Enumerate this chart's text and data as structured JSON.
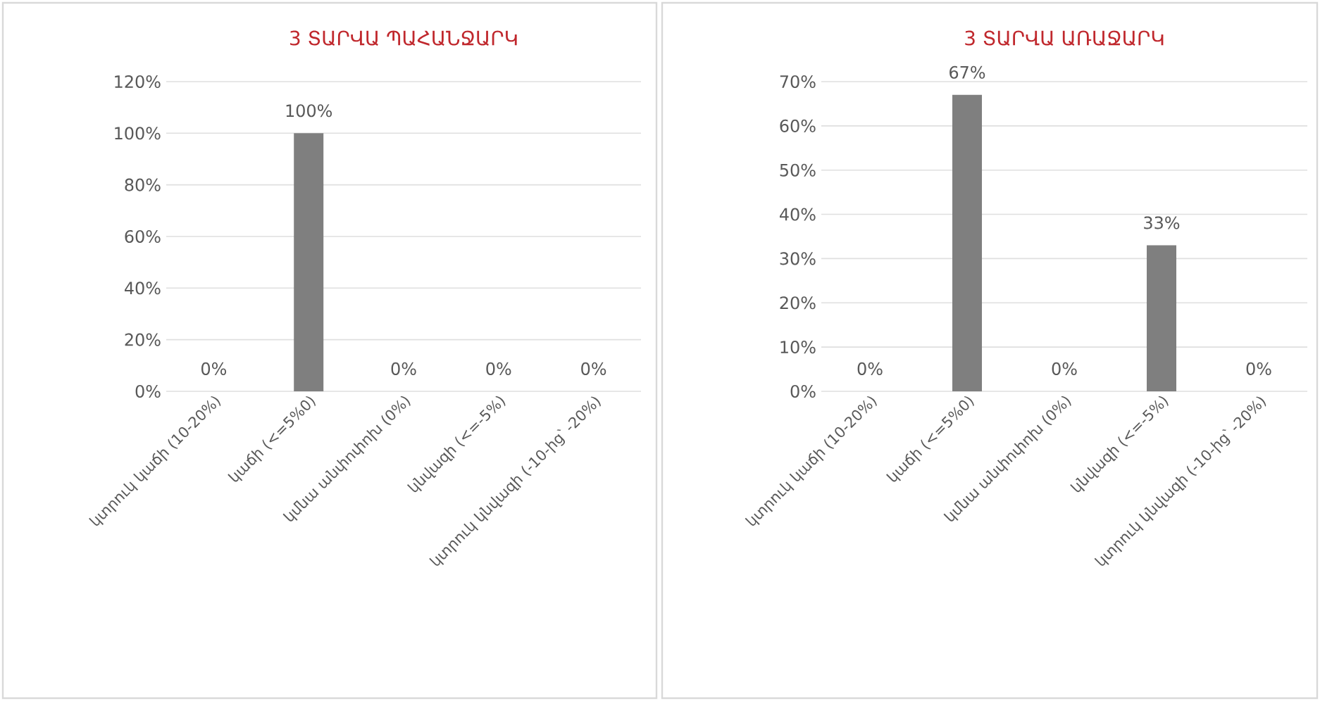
{
  "chart_data": [
    {
      "type": "bar",
      "title": "3 ՏԱՐՎԱ ՊԱՀԱՆՋԱՐԿ",
      "categories": [
        "կտրուկ կաճի (10-20%)",
        "կաճի (<=5%0)",
        "կմնա անփոփոխ (0%)",
        "կնվազի (<=-5%)",
        "կտրուկ կնվազի (-10-ից՝ -20%)"
      ],
      "values": [
        0,
        100,
        0,
        0,
        0
      ],
      "value_labels": [
        "0%",
        "100%",
        "0%",
        "0%",
        "0%"
      ],
      "color": "#7f7f7f",
      "ylim": [
        0,
        120
      ],
      "yticks": [
        {
          "value": 0,
          "label": "0%"
        },
        {
          "value": 20,
          "label": "20%"
        },
        {
          "value": 40,
          "label": "40%"
        },
        {
          "value": 60,
          "label": "60%"
        },
        {
          "value": 80,
          "label": "80%"
        },
        {
          "value": 100,
          "label": "100%"
        },
        {
          "value": 120,
          "label": "120%"
        }
      ],
      "grid": "y"
    },
    {
      "type": "bar",
      "title": "3 ՏԱՐՎԱ ԱՌԱՋԱՐԿ",
      "categories": [
        "կտրուկ կաճի (10-20%)",
        "կաճի (<=5%0)",
        "կմնա անփոփոխ (0%)",
        "կնվազի (<=-5%)",
        "կտրուկ կնվազի (-10-ից՝ -20%)"
      ],
      "values": [
        0,
        67,
        0,
        33,
        0
      ],
      "value_labels": [
        "0%",
        "67%",
        "0%",
        "33%",
        "0%"
      ],
      "color": "#7f7f7f",
      "ylim": [
        0,
        70
      ],
      "yticks": [
        {
          "value": 0,
          "label": "0%"
        },
        {
          "value": 10,
          "label": "10%"
        },
        {
          "value": 20,
          "label": "20%"
        },
        {
          "value": 30,
          "label": "30%"
        },
        {
          "value": 40,
          "label": "40%"
        },
        {
          "value": 50,
          "label": "50%"
        },
        {
          "value": 60,
          "label": "60%"
        },
        {
          "value": 70,
          "label": "70%"
        }
      ],
      "grid": "y"
    }
  ]
}
